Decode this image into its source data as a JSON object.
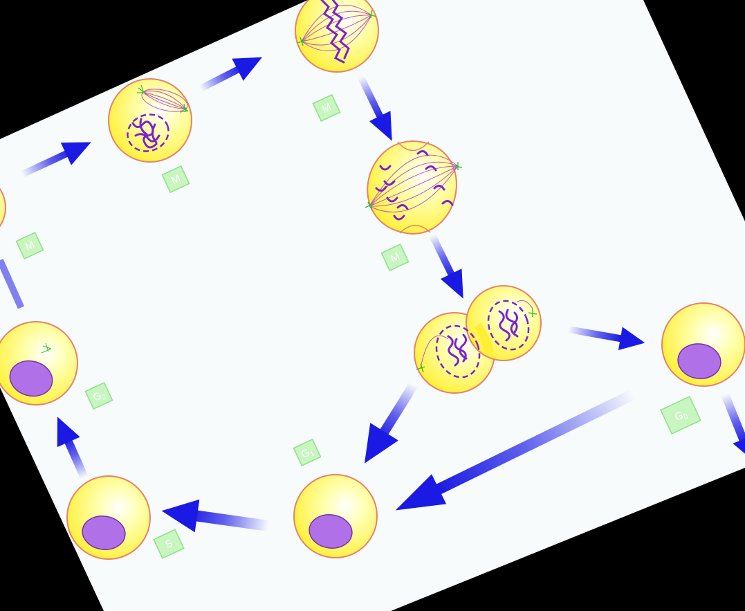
{
  "diagram": {
    "colors": {
      "background": "#000000",
      "paper": "#f7fbfb",
      "cell_fill": "#ffff66",
      "cell_outline": "#e8806a",
      "nucleus_fill": "#b070e8",
      "nucleus_outline": "#7a30a0",
      "chromosome": "#7a22d0",
      "spindle": "#c050c0",
      "centrosome": "#30c030",
      "arrow": "#2020e8",
      "label_box": "#c8f5c0",
      "label_border": "#8ee08a",
      "label_text": "#ffffff"
    },
    "stage_labels": [
      {
        "id": "prophase",
        "text": "M",
        "sub": ""
      },
      {
        "id": "metaphase",
        "text": "M",
        "sub": ""
      },
      {
        "id": "anaphase",
        "text": "M",
        "sub": ""
      },
      {
        "id": "telophase",
        "text": "G",
        "sub": "1"
      },
      {
        "id": "g0-cell",
        "text": "G",
        "sub": "0"
      },
      {
        "id": "g1-cell",
        "text": "S",
        "sub": ""
      },
      {
        "id": "s-cell",
        "text": "G",
        "sub": "2"
      },
      {
        "id": "g2-cell",
        "text": "M",
        "sub": ""
      }
    ]
  }
}
